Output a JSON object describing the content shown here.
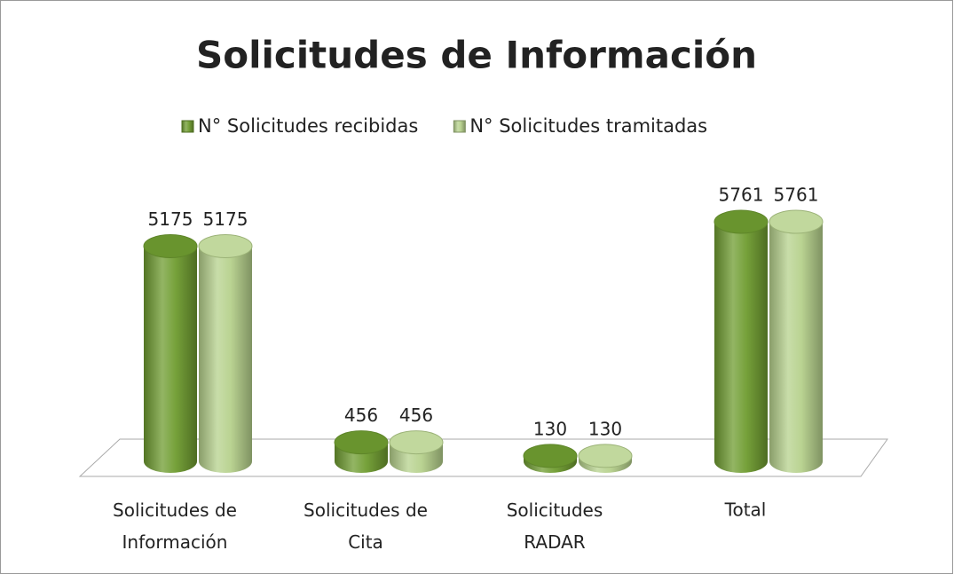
{
  "chart_data": {
    "type": "bar3d",
    "title": "Solicitudes de Información",
    "categories": [
      "Solicitudes de Información",
      "Solicitudes de Cita",
      "Solicitudes RADAR",
      "Total"
    ],
    "series": [
      {
        "name": "N° Solicitudes recibidas",
        "color": "#6f9c30",
        "values": [
          5175,
          456,
          130,
          5761
        ]
      },
      {
        "name": "N° Solicitudes tramitadas",
        "color": "#b6d18c",
        "values": [
          5175,
          456,
          130,
          5761
        ]
      }
    ],
    "legend": "top"
  }
}
